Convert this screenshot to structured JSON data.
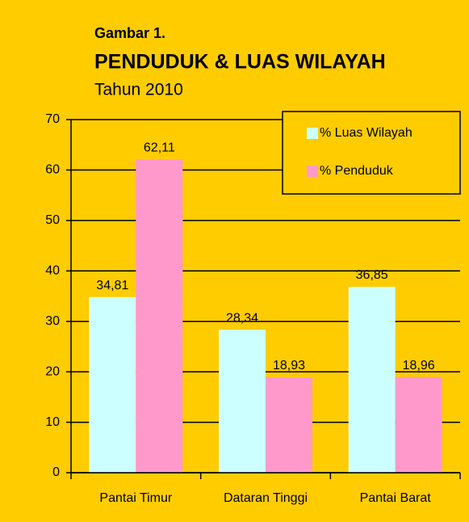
{
  "chart_data": {
    "type": "bar",
    "label": "Gambar 1.",
    "title": "PENDUDUK & LUAS WILAYAH",
    "subtitle": "Tahun 2010",
    "categories": [
      "Pantai Timur",
      "Dataran Tinggi",
      "Pantai Barat"
    ],
    "series": [
      {
        "name": "% Luas Wilayah",
        "color": "#ccffff",
        "values": [
          34.81,
          28.34,
          36.85
        ],
        "value_labels": [
          "34,81",
          "28,34",
          "36,85"
        ]
      },
      {
        "name": "% Penduduk",
        "color": "#ff99cc",
        "values": [
          62.11,
          18.93,
          18.96
        ],
        "value_labels": [
          "62,11",
          "18,93",
          "18,96"
        ]
      }
    ],
    "ylim": [
      0,
      70
    ],
    "yticks": [
      0,
      10,
      20,
      30,
      40,
      50,
      60,
      70
    ],
    "grid": true,
    "legend": "top-right",
    "background": "#ffcc00"
  }
}
